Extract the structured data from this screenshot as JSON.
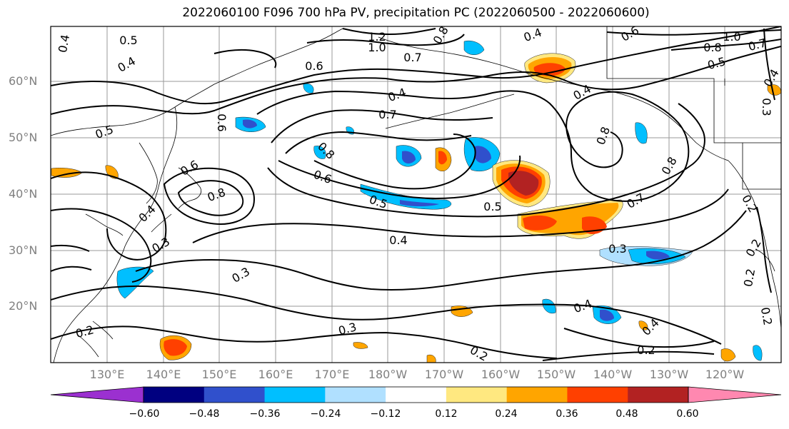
{
  "title": "2022060100 F096 700 hPa PV, precipitation PC (2022060500 - 2022060600)",
  "lat_labels": [
    "60°N",
    "50°N",
    "40°N",
    "30°N",
    "20°N"
  ],
  "lon_labels": [
    "130°E",
    "140°E",
    "150°E",
    "160°E",
    "170°E",
    "180°W",
    "170°W",
    "160°W",
    "150°W",
    "140°W",
    "130°W",
    "120°W"
  ],
  "colorbar": {
    "ticks": [
      "−0.60",
      "−0.48",
      "−0.36",
      "−0.24",
      "−0.12",
      "0.12",
      "0.24",
      "0.36",
      "0.48",
      "0.60"
    ],
    "colors": [
      "#9b30d0",
      "#000080",
      "#3050cc",
      "#00bfff",
      "#b0e0ff",
      "#ffffff",
      "#ffe880",
      "#ffa500",
      "#ff4000",
      "#b22222",
      "#ff88b0"
    ]
  },
  "contour_labels": [
    "0.4",
    "0.5",
    "0.4",
    "1.2",
    "1.0",
    "0.7",
    "0.8",
    "0.4",
    "0.6",
    "0.6",
    "1.0",
    "0.8",
    "0.7",
    "0.5",
    "0.4",
    "0.3",
    "0.6",
    "0.4",
    "0.7",
    "0.5",
    "0.8",
    "0.8",
    "0.4",
    "0.8",
    "0.6",
    "0.8",
    "0.6",
    "0.5",
    "0.5",
    "0.7",
    "0.2",
    "0.4",
    "0.3",
    "0.4",
    "0.3",
    "0.3",
    "0.2",
    "0.4",
    "0.2",
    "0.3",
    "0.2",
    "0.4",
    "0.2",
    "0.2",
    "0.2"
  ]
}
